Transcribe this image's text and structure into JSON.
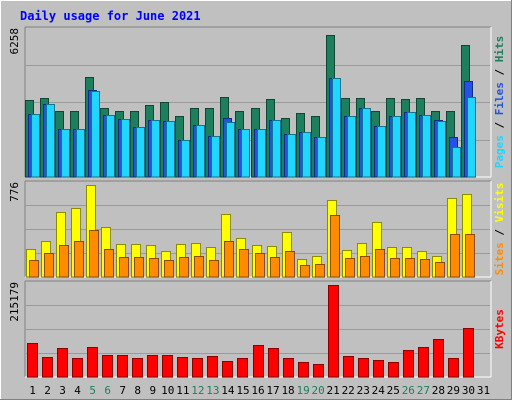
{
  "chart_data": {
    "type": "bar",
    "title": "Daily usage for June 2021",
    "days": [
      "1",
      "2",
      "3",
      "4",
      "5",
      "6",
      "7",
      "8",
      "9",
      "10",
      "11",
      "12",
      "13",
      "14",
      "15",
      "16",
      "17",
      "18",
      "19",
      "20",
      "21",
      "22",
      "23",
      "24",
      "25",
      "26",
      "27",
      "28",
      "29",
      "30",
      "31"
    ],
    "weekend_days": [
      "5",
      "6",
      "12",
      "13",
      "19",
      "20",
      "26",
      "27"
    ],
    "panels": [
      {
        "max_label": "6258",
        "ymax": 6258,
        "ylabel_parts": [
          "Pages",
          "Files",
          "Hits"
        ],
        "separator": " / ",
        "series": [
          {
            "name": "Hits",
            "color": "#1e7f5f",
            "values": [
              3300,
              3400,
              2850,
              2850,
              4300,
              2950,
              2850,
              2850,
              3100,
              3200,
              2600,
              2950,
              2950,
              3450,
              2850,
              2950,
              3350,
              2550,
              2750,
              2600,
              6100,
              3400,
              3400,
              2850,
              3400,
              3350,
              3400,
              2850,
              2850,
              5650,
              0
            ]
          },
          {
            "name": "Files",
            "color": "#2252e6",
            "values": [
              2700,
              3150,
              2050,
              2050,
              3750,
              2650,
              2500,
              2150,
              2450,
              2400,
              1600,
              2250,
              1750,
              2550,
              2050,
              2050,
              2450,
              1850,
              1950,
              1700,
              4250,
              2600,
              2950,
              2200,
              2600,
              2800,
              2650,
              2450,
              1700,
              4100,
              0
            ]
          },
          {
            "name": "Pages",
            "color": "#1ed6ff",
            "values": [
              2700,
              3150,
              2050,
              2050,
              3700,
              2650,
              2500,
              2150,
              2450,
              2400,
              1600,
              2250,
              1750,
              2350,
              2050,
              2050,
              2450,
              1850,
              1950,
              1700,
              4250,
              2600,
              2950,
              2200,
              2600,
              2800,
              2650,
              2400,
              1300,
              3450,
              0
            ]
          }
        ]
      },
      {
        "max_label": "776",
        "ymax": 776,
        "ylabel_parts": [
          "Sites",
          "Visits"
        ],
        "separator": " / ",
        "series": [
          {
            "name": "Visits",
            "color": "#ffff00",
            "values": [
              240,
              300,
              550,
              580,
              776,
              420,
              280,
              280,
              270,
              220,
              280,
              290,
              250,
              530,
              330,
              270,
              260,
              380,
              150,
              180,
              650,
              230,
              290,
              460,
              250,
              250,
              220,
              180,
              670,
              700,
              0
            ]
          },
          {
            "name": "Sites",
            "color": "#ff8c00",
            "values": [
              140,
              200,
              270,
              300,
              400,
              240,
              170,
              170,
              160,
              140,
              170,
              180,
              140,
              300,
              240,
              200,
              170,
              220,
              100,
              110,
              520,
              160,
              180,
              240,
              160,
              160,
              150,
              130,
              360,
              360,
              0
            ]
          }
        ]
      },
      {
        "max_label": "215179",
        "ymax": 215179,
        "ylabel_parts": [
          "KBytes"
        ],
        "separator": "",
        "series": [
          {
            "name": "KBytes",
            "color": "#ff0000",
            "values": [
              80000,
              46000,
              67000,
              44000,
              70000,
              52000,
              52000,
              44000,
              52000,
              52000,
              47000,
              44000,
              50000,
              38000,
              44000,
              76000,
              68000,
              44000,
              34000,
              30000,
              215179,
              50000,
              44000,
              40000,
              34000,
              63000,
              70000,
              90000,
              44000,
              115000,
              0
            ]
          }
        ]
      }
    ]
  }
}
